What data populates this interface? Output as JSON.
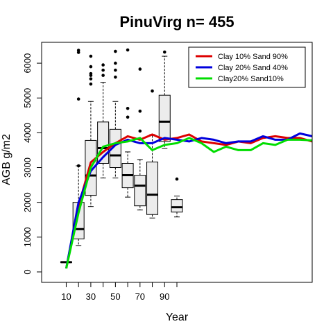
{
  "chart_data": {
    "type": "box+line",
    "title": "PinuVirg n= 455",
    "xlabel": "Year",
    "ylabel": "AGB g/m2",
    "xlim": [
      -10,
      210
    ],
    "ylim": [
      -300,
      6600
    ],
    "x_ticks": [
      10,
      30,
      50,
      70,
      90
    ],
    "x_ticks_unlabeled": [
      20,
      40,
      60,
      80,
      100
    ],
    "y_ticks": [
      0,
      1000,
      2000,
      3000,
      4000,
      5000,
      6000
    ],
    "grid": false,
    "legend_position": "top-right",
    "boxplots": [
      {
        "x": 10,
        "q1": 270,
        "median": 280,
        "q3": 290,
        "whisker_low": 270,
        "whisker_high": 290,
        "outliers": []
      },
      {
        "x": 20,
        "q1": 950,
        "median": 1230,
        "q3": 2000,
        "whisker_low": 760,
        "whisker_high": 3050,
        "outliers": [
          3050,
          4970,
          6310,
          6370
        ]
      },
      {
        "x": 30,
        "q1": 2200,
        "median": 2770,
        "q3": 3780,
        "whisker_low": 1880,
        "whisker_high": 4900,
        "outliers": [
          5400,
          5550,
          5650,
          5700,
          5900,
          6200
        ]
      },
      {
        "x": 40,
        "q1": 3120,
        "median": 3560,
        "q3": 4310,
        "whisker_low": 2700,
        "whisker_high": 5450,
        "outliers": [
          5650,
          5800,
          5950
        ]
      },
      {
        "x": 50,
        "q1": 3000,
        "median": 3350,
        "q3": 4100,
        "whisker_low": 2700,
        "whisker_high": 4900,
        "outliers": [
          5600,
          5800,
          6000,
          6340
        ]
      },
      {
        "x": 60,
        "q1": 2420,
        "median": 2780,
        "q3": 3120,
        "whisker_low": 2150,
        "whisker_high": 3450,
        "outliers": [
          4450,
          4700,
          6380
        ]
      },
      {
        "x": 70,
        "q1": 1900,
        "median": 2480,
        "q3": 2780,
        "whisker_low": 1780,
        "whisker_high": 3230,
        "outliers": [
          4050,
          4620,
          5830
        ]
      },
      {
        "x": 80,
        "q1": 1650,
        "median": 2220,
        "q3": 3160,
        "whisker_low": 1550,
        "whisker_high": 3950,
        "outliers": [
          5200
        ]
      },
      {
        "x": 90,
        "q1": 3750,
        "median": 4320,
        "q3": 5080,
        "whisker_low": 3550,
        "whisker_high": 6200,
        "outliers": [
          6320
        ]
      },
      {
        "x": 100,
        "q1": 1720,
        "median": 1860,
        "q3": 2080,
        "whisker_low": 1580,
        "whisker_high": 2180,
        "outliers": [
          2670
        ]
      }
    ],
    "series": [
      {
        "name": "Clay 10% Sand 90%",
        "color": "#dd0000",
        "x": [
          10,
          20,
          30,
          40,
          50,
          60,
          70,
          80,
          90,
          100,
          110,
          120,
          130,
          140,
          150,
          160,
          170,
          180,
          190,
          200,
          210
        ],
        "y": [
          100,
          1900,
          3150,
          3450,
          3700,
          3900,
          3800,
          3950,
          3800,
          3850,
          3950,
          3750,
          3700,
          3650,
          3750,
          3700,
          3850,
          3900,
          3850,
          3850,
          3750
        ]
      },
      {
        "name": "Clay 20% Sand 40%",
        "color": "#0000dd",
        "x": [
          10,
          20,
          30,
          40,
          50,
          60,
          70,
          80,
          90,
          100,
          110,
          120,
          130,
          140,
          150,
          160,
          170,
          180,
          190,
          200,
          210
        ],
        "y": [
          100,
          2000,
          2900,
          3300,
          3650,
          3800,
          3700,
          3700,
          3850,
          3800,
          3750,
          3850,
          3800,
          3700,
          3750,
          3750,
          3900,
          3800,
          3800,
          3980,
          3900
        ]
      },
      {
        "name": "Clay20% Sand10%",
        "color": "#00dd00",
        "x": [
          10,
          20,
          30,
          40,
          50,
          60,
          70,
          80,
          90,
          100,
          110,
          120,
          130,
          140,
          150,
          160,
          170,
          180,
          190,
          200,
          210
        ],
        "y": [
          100,
          1700,
          3000,
          3600,
          3700,
          3750,
          3850,
          3500,
          3650,
          3700,
          3850,
          3700,
          3450,
          3600,
          3500,
          3500,
          3700,
          3650,
          3800,
          3800,
          3780
        ]
      }
    ]
  }
}
